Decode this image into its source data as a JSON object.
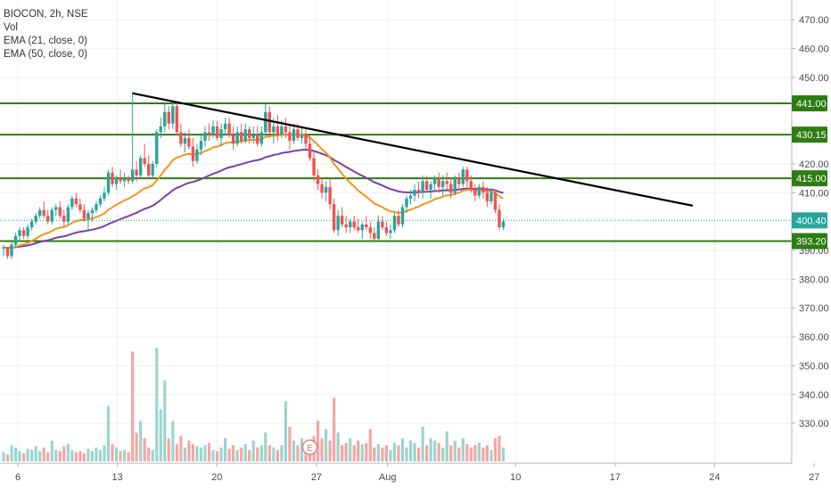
{
  "legend": {
    "symbol": "BIOCON, 2h, NSE",
    "vol": "Vol",
    "ema21": "EMA (21, close, 0)",
    "ema50": "EMA (50, close, 0)"
  },
  "colors": {
    "up": "#26a69a",
    "down": "#ef5350",
    "vol_up": "#9bd5cf",
    "vol_down": "#f5a6a5",
    "ema21": "#f7931e",
    "ema50": "#7b3fa6",
    "hline": "#2e7d12",
    "trendline": "#000000",
    "last_price": "#26a69a",
    "grid": "#eef0f3",
    "earnings_badge": "#e57373"
  },
  "chart_data": {
    "type": "candlestick",
    "symbol": "BIOCON",
    "interval": "2h",
    "exchange": "NSE",
    "y_range": [
      322,
      474
    ],
    "y_ticks": [
      330,
      340,
      350,
      360,
      370,
      380,
      390,
      410,
      420,
      450,
      460,
      470
    ],
    "x_ticks": [
      "6",
      "13",
      "20",
      "27",
      "Aug",
      "10",
      "17",
      "24",
      "27"
    ],
    "price_labels": [
      {
        "text": "441.00",
        "value": 441.0,
        "kind": "level"
      },
      {
        "text": "430.15",
        "value": 430.15,
        "kind": "level"
      },
      {
        "text": "415.00",
        "value": 415.0,
        "kind": "level"
      },
      {
        "text": "400.40",
        "value": 400.4,
        "kind": "last"
      },
      {
        "text": "393.20",
        "value": 393.2,
        "kind": "level"
      }
    ],
    "horizontal_levels": [
      441.0,
      430.15,
      415.0,
      393.2
    ],
    "trendline": {
      "from": {
        "bar": 32,
        "price": 444.5
      },
      "to": {
        "bar": 171,
        "price": 405.5
      }
    },
    "earnings_marker": {
      "label": "E",
      "bar": 76
    },
    "bars_per_day": 4,
    "candles": [
      [
        391,
        392,
        388,
        391
      ],
      [
        391,
        391,
        387,
        388
      ],
      [
        388,
        393,
        387,
        392
      ],
      [
        392,
        396,
        391,
        395
      ],
      [
        395,
        398,
        393,
        397
      ],
      [
        397,
        398,
        394,
        395
      ],
      [
        395,
        399,
        394,
        398
      ],
      [
        398,
        401,
        397,
        400
      ],
      [
        400,
        403,
        399,
        402
      ],
      [
        402,
        405,
        401,
        404
      ],
      [
        404,
        407,
        401,
        402
      ],
      [
        402,
        404,
        399,
        400
      ],
      [
        400,
        405,
        399,
        404
      ],
      [
        404,
        406,
        402,
        405
      ],
      [
        405,
        407,
        401,
        402
      ],
      [
        402,
        404,
        398,
        400
      ],
      [
        400,
        406,
        399,
        405
      ],
      [
        405,
        409,
        404,
        408
      ],
      [
        408,
        410,
        405,
        406
      ],
      [
        406,
        408,
        403,
        404
      ],
      [
        404,
        406,
        400,
        401
      ],
      [
        401,
        404,
        397,
        403
      ],
      [
        403,
        405,
        400,
        404
      ],
      [
        404,
        407,
        403,
        406
      ],
      [
        406,
        409,
        405,
        408
      ],
      [
        408,
        412,
        407,
        410
      ],
      [
        410,
        418,
        409,
        417
      ],
      [
        417,
        419,
        412,
        413
      ],
      [
        413,
        416,
        411,
        415
      ],
      [
        415,
        418,
        413,
        414
      ],
      [
        414,
        417,
        412,
        415
      ],
      [
        415,
        416,
        413,
        414
      ],
      [
        414,
        445,
        413,
        418
      ],
      [
        418,
        421,
        414,
        416
      ],
      [
        416,
        423,
        415,
        422
      ],
      [
        422,
        427,
        419,
        420
      ],
      [
        420,
        423,
        415,
        416
      ],
      [
        416,
        421,
        415,
        420
      ],
      [
        420,
        432,
        419,
        431
      ],
      [
        431,
        436,
        429,
        433
      ],
      [
        433,
        441,
        431,
        438
      ],
      [
        438,
        440,
        432,
        434
      ],
      [
        434,
        442,
        432,
        440
      ],
      [
        440,
        441,
        430,
        431
      ],
      [
        431,
        434,
        426,
        427
      ],
      [
        427,
        431,
        424,
        429
      ],
      [
        429,
        432,
        425,
        426
      ],
      [
        426,
        429,
        419,
        421
      ],
      [
        421,
        427,
        420,
        425
      ],
      [
        425,
        430,
        423,
        428
      ],
      [
        428,
        433,
        426,
        431
      ],
      [
        431,
        434,
        428,
        430
      ],
      [
        430,
        435,
        429,
        433
      ],
      [
        433,
        435,
        428,
        429
      ],
      [
        429,
        434,
        426,
        432
      ],
      [
        432,
        436,
        430,
        434
      ],
      [
        434,
        436,
        429,
        430
      ],
      [
        430,
        433,
        425,
        427
      ],
      [
        427,
        433,
        426,
        431
      ],
      [
        431,
        434,
        427,
        428
      ],
      [
        428,
        434,
        427,
        432
      ],
      [
        432,
        433,
        427,
        429
      ],
      [
        429,
        433,
        427,
        430
      ],
      [
        430,
        433,
        426,
        427
      ],
      [
        427,
        433,
        426,
        431
      ],
      [
        431,
        441,
        430,
        438
      ],
      [
        438,
        440,
        429,
        431
      ],
      [
        431,
        436,
        427,
        433
      ],
      [
        433,
        437,
        428,
        430
      ],
      [
        430,
        435,
        429,
        433
      ],
      [
        433,
        436,
        429,
        431
      ],
      [
        431,
        434,
        425,
        428
      ],
      [
        428,
        434,
        427,
        432
      ],
      [
        432,
        434,
        428,
        429
      ],
      [
        429,
        433,
        427,
        430
      ],
      [
        430,
        432,
        425,
        427
      ],
      [
        427,
        430,
        421,
        422
      ],
      [
        422,
        425,
        414,
        416
      ],
      [
        416,
        418,
        411,
        413
      ],
      [
        413,
        415,
        408,
        410
      ],
      [
        410,
        414,
        407,
        412
      ],
      [
        412,
        415,
        404,
        406
      ],
      [
        406,
        408,
        396,
        397
      ],
      [
        397,
        404,
        395,
        402
      ],
      [
        402,
        405,
        398,
        399
      ],
      [
        399,
        402,
        396,
        398
      ],
      [
        398,
        401,
        396,
        400
      ],
      [
        400,
        402,
        397,
        398
      ],
      [
        398,
        401,
        396,
        397
      ],
      [
        397,
        400,
        394,
        399
      ],
      [
        399,
        402,
        397,
        398
      ],
      [
        398,
        400,
        394,
        396
      ],
      [
        396,
        398,
        393,
        394
      ],
      [
        394,
        402,
        393,
        400
      ],
      [
        400,
        402,
        397,
        398
      ],
      [
        398,
        400,
        395,
        396
      ],
      [
        396,
        399,
        394,
        397
      ],
      [
        397,
        403,
        396,
        402
      ],
      [
        402,
        404,
        398,
        399
      ],
      [
        399,
        406,
        398,
        405
      ],
      [
        405,
        409,
        403,
        408
      ],
      [
        408,
        411,
        406,
        409
      ],
      [
        409,
        413,
        407,
        411
      ],
      [
        411,
        414,
        408,
        410
      ],
      [
        410,
        416,
        408,
        414
      ],
      [
        414,
        416,
        410,
        411
      ],
      [
        411,
        414,
        408,
        413
      ],
      [
        413,
        416,
        411,
        415
      ],
      [
        415,
        417,
        410,
        412
      ],
      [
        412,
        416,
        409,
        414
      ],
      [
        414,
        417,
        411,
        413
      ],
      [
        413,
        415,
        408,
        410
      ],
      [
        410,
        416,
        409,
        415
      ],
      [
        415,
        417,
        411,
        413
      ],
      [
        413,
        419,
        412,
        418
      ],
      [
        418,
        419,
        412,
        414
      ],
      [
        414,
        416,
        410,
        411
      ],
      [
        411,
        413,
        407,
        409
      ],
      [
        409,
        413,
        408,
        412
      ],
      [
        412,
        414,
        408,
        410
      ],
      [
        410,
        412,
        405,
        407
      ],
      [
        407,
        411,
        406,
        410
      ],
      [
        410,
        411,
        403,
        404
      ],
      [
        404,
        406,
        397,
        398
      ],
      [
        398,
        401,
        397,
        400
      ]
    ],
    "volume": [
      {
        "v": 8,
        "up": true
      },
      {
        "v": 6,
        "up": false
      },
      {
        "v": 14,
        "up": true
      },
      {
        "v": 12,
        "up": true
      },
      {
        "v": 9,
        "up": true
      },
      {
        "v": 7,
        "up": false
      },
      {
        "v": 11,
        "up": true
      },
      {
        "v": 10,
        "up": true
      },
      {
        "v": 13,
        "up": true
      },
      {
        "v": 9,
        "up": true
      },
      {
        "v": 12,
        "up": false
      },
      {
        "v": 8,
        "up": false
      },
      {
        "v": 18,
        "up": true
      },
      {
        "v": 10,
        "up": true
      },
      {
        "v": 9,
        "up": false
      },
      {
        "v": 13,
        "up": false
      },
      {
        "v": 15,
        "up": true
      },
      {
        "v": 10,
        "up": true
      },
      {
        "v": 8,
        "up": false
      },
      {
        "v": 9,
        "up": false
      },
      {
        "v": 7,
        "up": false
      },
      {
        "v": 11,
        "up": true
      },
      {
        "v": 9,
        "up": true
      },
      {
        "v": 12,
        "up": true
      },
      {
        "v": 10,
        "up": true
      },
      {
        "v": 14,
        "up": true
      },
      {
        "v": 48,
        "up": true
      },
      {
        "v": 15,
        "up": false
      },
      {
        "v": 12,
        "up": true
      },
      {
        "v": 9,
        "up": false
      },
      {
        "v": 10,
        "up": true
      },
      {
        "v": 8,
        "up": false
      },
      {
        "v": 95,
        "up": false
      },
      {
        "v": 25,
        "up": false
      },
      {
        "v": 35,
        "up": true
      },
      {
        "v": 20,
        "up": false
      },
      {
        "v": 12,
        "up": false
      },
      {
        "v": 10,
        "up": true
      },
      {
        "v": 98,
        "up": true
      },
      {
        "v": 45,
        "up": true
      },
      {
        "v": 70,
        "up": true
      },
      {
        "v": 20,
        "up": false
      },
      {
        "v": 35,
        "up": true
      },
      {
        "v": 15,
        "up": false
      },
      {
        "v": 22,
        "up": false
      },
      {
        "v": 12,
        "up": true
      },
      {
        "v": 18,
        "up": false
      },
      {
        "v": 15,
        "up": false
      },
      {
        "v": 13,
        "up": true
      },
      {
        "v": 12,
        "up": true
      },
      {
        "v": 14,
        "up": true
      },
      {
        "v": 16,
        "up": false
      },
      {
        "v": 10,
        "up": true
      },
      {
        "v": 9,
        "up": false
      },
      {
        "v": 12,
        "up": true
      },
      {
        "v": 20,
        "up": true
      },
      {
        "v": 11,
        "up": false
      },
      {
        "v": 14,
        "up": false
      },
      {
        "v": 10,
        "up": true
      },
      {
        "v": 12,
        "up": false
      },
      {
        "v": 15,
        "up": true
      },
      {
        "v": 10,
        "up": false
      },
      {
        "v": 18,
        "up": true
      },
      {
        "v": 12,
        "up": false
      },
      {
        "v": 14,
        "up": true
      },
      {
        "v": 25,
        "up": true
      },
      {
        "v": 14,
        "up": false
      },
      {
        "v": 12,
        "up": true
      },
      {
        "v": 10,
        "up": false
      },
      {
        "v": 14,
        "up": true
      },
      {
        "v": 52,
        "up": true
      },
      {
        "v": 30,
        "up": false
      },
      {
        "v": 18,
        "up": true
      },
      {
        "v": 14,
        "up": false
      },
      {
        "v": 20,
        "up": true
      },
      {
        "v": 12,
        "up": false
      },
      {
        "v": 14,
        "up": false
      },
      {
        "v": 22,
        "up": false
      },
      {
        "v": 35,
        "up": false
      },
      {
        "v": 20,
        "up": false
      },
      {
        "v": 28,
        "up": true
      },
      {
        "v": 18,
        "up": false
      },
      {
        "v": 55,
        "up": false
      },
      {
        "v": 25,
        "up": true
      },
      {
        "v": 14,
        "up": false
      },
      {
        "v": 16,
        "up": false
      },
      {
        "v": 20,
        "up": true
      },
      {
        "v": 14,
        "up": false
      },
      {
        "v": 18,
        "up": false
      },
      {
        "v": 15,
        "up": true
      },
      {
        "v": 16,
        "up": false
      },
      {
        "v": 28,
        "up": false
      },
      {
        "v": 12,
        "up": false
      },
      {
        "v": 15,
        "up": true
      },
      {
        "v": 12,
        "up": false
      },
      {
        "v": 14,
        "up": false
      },
      {
        "v": 10,
        "up": true
      },
      {
        "v": 16,
        "up": true
      },
      {
        "v": 14,
        "up": false
      },
      {
        "v": 20,
        "up": true
      },
      {
        "v": 12,
        "up": true
      },
      {
        "v": 18,
        "up": true
      },
      {
        "v": 16,
        "up": true
      },
      {
        "v": 12,
        "up": false
      },
      {
        "v": 30,
        "up": true
      },
      {
        "v": 14,
        "up": false
      },
      {
        "v": 20,
        "up": true
      },
      {
        "v": 18,
        "up": true
      },
      {
        "v": 16,
        "up": false
      },
      {
        "v": 12,
        "up": true
      },
      {
        "v": 26,
        "up": true
      },
      {
        "v": 14,
        "up": false
      },
      {
        "v": 18,
        "up": true
      },
      {
        "v": 12,
        "up": false
      },
      {
        "v": 20,
        "up": true
      },
      {
        "v": 15,
        "up": false
      },
      {
        "v": 12,
        "up": false
      },
      {
        "v": 14,
        "up": false
      },
      {
        "v": 16,
        "up": true
      },
      {
        "v": 12,
        "up": false
      },
      {
        "v": 14,
        "up": false
      },
      {
        "v": 10,
        "up": true
      },
      {
        "v": 20,
        "up": false
      },
      {
        "v": 22,
        "up": false
      },
      {
        "v": 12,
        "up": true
      }
    ]
  }
}
